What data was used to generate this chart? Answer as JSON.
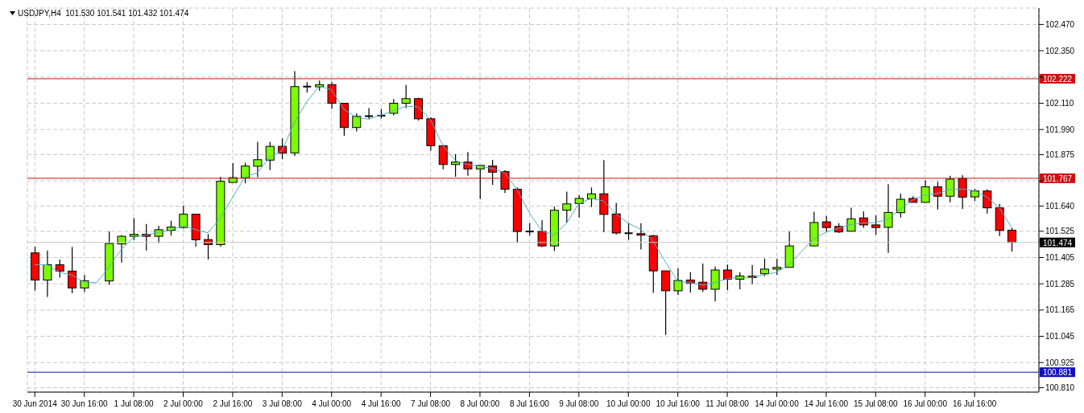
{
  "chart_data": {
    "type": "candlestick",
    "title": "USDJPY,H4  101.530 101.541 101.432 101.474",
    "categories": [
      "30 Jun 2014",
      null,
      null,
      null,
      "30 Jun 16:00",
      null,
      null,
      null,
      "1 Jul 08:00",
      null,
      null,
      null,
      "2 Jul 00:00",
      null,
      null,
      null,
      "2 Jul 16:00",
      null,
      null,
      null,
      "3 Jul 08:00",
      null,
      null,
      null,
      "4 Jul 00:00",
      null,
      null,
      null,
      "4 Jul 16:00",
      null,
      null,
      null,
      "7 Jul 08:00",
      null,
      null,
      null,
      "8 Jul 00:00",
      null,
      null,
      null,
      "8 Jul 16:00",
      null,
      null,
      null,
      "9 Jul 08:00",
      null,
      null,
      null,
      "10 Jul 00:00",
      null,
      null,
      null,
      "10 Jul 16:00",
      null,
      null,
      null,
      "11 Jul 08:00",
      null,
      null,
      null,
      "14 Jul 00:00",
      null,
      null,
      null,
      "14 Jul 16:00",
      null,
      null,
      null,
      "15 Jul 08:00",
      null,
      null,
      null,
      "16 Jul 00:00",
      null,
      null,
      null,
      "16 Jul 16:00",
      null,
      null,
      null
    ],
    "ohlc": [
      [
        101.426,
        101.455,
        101.254,
        101.302
      ],
      [
        101.302,
        101.437,
        101.225,
        101.372
      ],
      [
        101.372,
        101.396,
        101.313,
        101.343
      ],
      [
        101.343,
        101.453,
        101.242,
        101.266
      ],
      [
        101.266,
        101.325,
        101.248,
        101.299
      ],
      null,
      [
        101.298,
        101.524,
        101.28,
        101.469
      ],
      [
        101.467,
        101.508,
        101.382,
        101.502
      ],
      [
        101.502,
        101.585,
        101.485,
        101.511
      ],
      [
        101.511,
        101.558,
        101.437,
        101.502
      ],
      [
        101.502,
        101.55,
        101.471,
        101.532
      ],
      [
        101.529,
        101.573,
        101.505,
        101.544
      ],
      [
        101.542,
        101.642,
        101.538,
        101.603
      ],
      [
        101.603,
        101.603,
        101.455,
        101.486
      ],
      [
        101.487,
        101.512,
        101.396,
        101.464
      ],
      [
        101.464,
        101.774,
        101.455,
        101.753
      ],
      [
        101.748,
        101.836,
        101.748,
        101.77
      ],
      [
        101.769,
        101.838,
        101.744,
        101.823
      ],
      [
        101.822,
        101.934,
        101.772,
        101.852
      ],
      [
        101.85,
        101.934,
        101.804,
        101.913
      ],
      [
        101.913,
        101.949,
        101.855,
        101.882
      ],
      [
        101.883,
        102.257,
        101.869,
        102.186
      ],
      [
        102.186,
        102.206,
        102.159,
        102.186
      ],
      [
        102.185,
        102.214,
        102.167,
        102.195
      ],
      [
        102.195,
        102.206,
        102.084,
        102.11
      ],
      [
        102.11,
        102.11,
        101.961,
        101.999
      ],
      [
        101.999,
        102.064,
        101.981,
        102.05
      ],
      [
        102.051,
        102.088,
        102.037,
        102.051
      ],
      [
        102.053,
        102.084,
        102.04,
        102.053
      ],
      [
        102.064,
        102.129,
        102.055,
        102.11
      ],
      [
        102.11,
        102.193,
        102.088,
        102.131
      ],
      [
        102.131,
        102.135,
        102.031,
        102.039
      ],
      [
        102.039,
        102.046,
        101.893,
        101.916
      ],
      [
        101.916,
        101.916,
        101.808,
        101.83
      ],
      [
        101.83,
        101.877,
        101.774,
        101.841
      ],
      [
        101.841,
        101.887,
        101.779,
        101.81
      ],
      [
        101.81,
        101.826,
        101.672,
        101.826
      ],
      [
        101.823,
        101.851,
        101.737,
        101.795
      ],
      [
        101.798,
        101.804,
        101.7,
        101.717
      ],
      [
        101.717,
        101.725,
        101.472,
        101.524
      ],
      [
        101.524,
        101.562,
        101.506,
        101.524
      ],
      [
        101.524,
        101.576,
        101.453,
        101.458
      ],
      [
        101.458,
        101.638,
        101.435,
        101.621
      ],
      [
        101.621,
        101.706,
        101.564,
        101.65
      ],
      [
        101.652,
        101.69,
        101.588,
        101.675
      ],
      [
        101.673,
        101.725,
        101.636,
        101.696
      ],
      [
        101.696,
        101.85,
        101.521,
        101.602
      ],
      [
        101.604,
        101.655,
        101.511,
        101.517
      ],
      [
        101.516,
        101.562,
        101.485,
        101.516
      ],
      [
        101.514,
        101.562,
        101.442,
        101.507
      ],
      [
        101.504,
        101.509,
        101.243,
        101.344
      ],
      [
        101.344,
        101.344,
        101.052,
        101.253
      ],
      [
        101.253,
        101.355,
        101.234,
        101.3
      ],
      [
        101.302,
        101.338,
        101.245,
        101.288
      ],
      [
        101.292,
        101.377,
        101.248,
        101.26
      ],
      [
        101.26,
        101.364,
        101.205,
        101.348
      ],
      [
        101.348,
        101.373,
        101.255,
        101.306
      ],
      [
        101.306,
        101.338,
        101.26,
        101.321
      ],
      [
        101.32,
        101.371,
        101.284,
        101.313
      ],
      [
        101.331,
        101.4,
        101.32,
        101.352
      ],
      [
        101.352,
        101.399,
        101.326,
        101.36
      ],
      [
        101.36,
        101.523,
        101.36,
        101.458
      ],
      null,
      [
        101.458,
        101.614,
        101.456,
        101.565
      ],
      [
        101.568,
        101.595,
        101.521,
        101.542
      ],
      [
        101.547,
        101.562,
        101.517,
        101.522
      ],
      [
        101.525,
        101.633,
        101.525,
        101.582
      ],
      [
        101.586,
        101.616,
        101.541,
        101.554
      ],
      [
        101.554,
        101.598,
        101.509,
        101.542
      ],
      [
        101.543,
        101.74,
        101.426,
        101.611
      ],
      [
        101.61,
        101.697,
        101.588,
        101.671
      ],
      [
        101.675,
        101.685,
        101.657,
        101.657
      ],
      [
        101.657,
        101.757,
        101.657,
        101.728
      ],
      [
        101.728,
        101.751,
        101.624,
        101.685
      ],
      [
        101.685,
        101.779,
        101.657,
        101.763
      ],
      [
        101.766,
        101.781,
        101.627,
        101.681
      ],
      [
        101.682,
        101.718,
        101.663,
        101.709
      ],
      [
        101.709,
        101.716,
        101.606,
        101.632
      ],
      [
        101.632,
        101.65,
        101.503,
        101.529
      ],
      [
        101.53,
        101.541,
        101.432,
        101.474
      ]
    ],
    "colors": [
      "#ff0000",
      "#7cfc00",
      "#ff0000",
      "#ff0000",
      "#7cfc00",
      null,
      "#7cfc00",
      "#7cfc00",
      "#7cfc00",
      "#ff0000",
      "#7cfc00",
      "#7cfc00",
      "#7cfc00",
      "#ff0000",
      "#ff0000",
      "#7cfc00",
      "#7cfc00",
      "#7cfc00",
      "#7cfc00",
      "#7cfc00",
      "#ff0000",
      "#7cfc00",
      "#000000",
      "#7cfc00",
      "#ff0000",
      "#ff0000",
      "#7cfc00",
      "#000000",
      "#000000",
      "#7cfc00",
      "#7cfc00",
      "#ff0000",
      "#ff0000",
      "#ff0000",
      "#7cfc00",
      "#ff0000",
      "#7cfc00",
      "#ff0000",
      "#ff0000",
      "#ff0000",
      "#000000",
      "#ff0000",
      "#7cfc00",
      "#7cfc00",
      "#7cfc00",
      "#7cfc00",
      "#ff0000",
      "#ff0000",
      "#000000",
      "#ff0000",
      "#ff0000",
      "#ff0000",
      "#7cfc00",
      "#ff0000",
      "#ff0000",
      "#7cfc00",
      "#ff0000",
      "#7cfc00",
      "#ff0000",
      "#7cfc00",
      "#7cfc00",
      "#7cfc00",
      null,
      "#7cfc00",
      "#ff0000",
      "#ff0000",
      "#7cfc00",
      "#ff0000",
      "#ff0000",
      "#7cfc00",
      "#7cfc00",
      "#ff0000",
      "#7cfc00",
      "#ff0000",
      "#7cfc00",
      "#ff0000",
      "#7cfc00",
      "#ff0000",
      "#ff0000",
      "#ff0000"
    ],
    "series": [
      {
        "type": "line",
        "color": "#4fb0c6",
        "values": [
          101.372,
          101.372,
          101.337,
          101.325,
          101.292,
          101.29,
          101.361,
          101.443,
          101.497,
          101.508,
          101.52,
          101.53,
          101.55,
          101.532,
          101.518,
          101.585,
          101.68,
          101.774,
          101.792,
          101.863,
          101.893,
          102.023,
          102.117,
          102.188,
          102.171,
          102.082,
          102.046,
          102.037,
          102.055,
          102.076,
          102.096,
          102.094,
          102.035,
          101.916,
          101.848,
          101.83,
          101.822,
          101.812,
          101.792,
          101.715,
          101.609,
          101.526,
          101.508,
          101.562,
          101.651,
          101.675,
          101.663,
          101.604,
          101.562,
          101.533,
          101.48,
          101.385,
          101.296,
          101.29,
          101.279,
          101.29,
          101.308,
          101.314,
          101.314,
          101.326,
          101.338,
          101.373,
          101.432,
          101.491,
          101.521,
          101.539,
          101.556,
          101.562,
          101.565,
          101.58,
          101.627,
          101.669,
          101.69,
          101.698,
          101.716,
          101.718,
          101.71,
          101.681,
          101.633,
          101.541
        ]
      }
    ],
    "ylim": [
      100.79,
      102.545
    ],
    "yticks": [
      {
        "value": 102.47,
        "label": "102.470"
      },
      {
        "value": 102.35,
        "label": "102.350"
      },
      {
        "value": 102.23,
        "label": null
      },
      {
        "value": 102.11,
        "label": "102.110"
      },
      {
        "value": 101.99,
        "label": "101.990"
      },
      {
        "value": 101.875,
        "label": "101.875"
      },
      {
        "value": 101.755,
        "label": null
      },
      {
        "value": 101.64,
        "label": "101.640"
      },
      {
        "value": 101.525,
        "label": "101.525"
      },
      {
        "value": 101.405,
        "label": "101.405"
      },
      {
        "value": 101.285,
        "label": "101.285"
      },
      {
        "value": 101.165,
        "label": "101.165"
      },
      {
        "value": 101.045,
        "label": "101.045"
      },
      {
        "value": 100.925,
        "label": "100.925"
      },
      {
        "value": 100.81,
        "label": "100.810"
      }
    ],
    "ref_lines": [
      {
        "axis": "y",
        "value": 102.222,
        "label": "102.222",
        "color": "#d01010"
      },
      {
        "axis": "y",
        "value": 101.767,
        "label": "101.767",
        "color": "#d01010"
      },
      {
        "axis": "y",
        "value": 101.474,
        "label": "101.474",
        "color": "#c8c8c8"
      },
      {
        "axis": "y",
        "value": 100.881,
        "label": "100.881",
        "color": "#1010c0"
      }
    ],
    "grid": true
  }
}
